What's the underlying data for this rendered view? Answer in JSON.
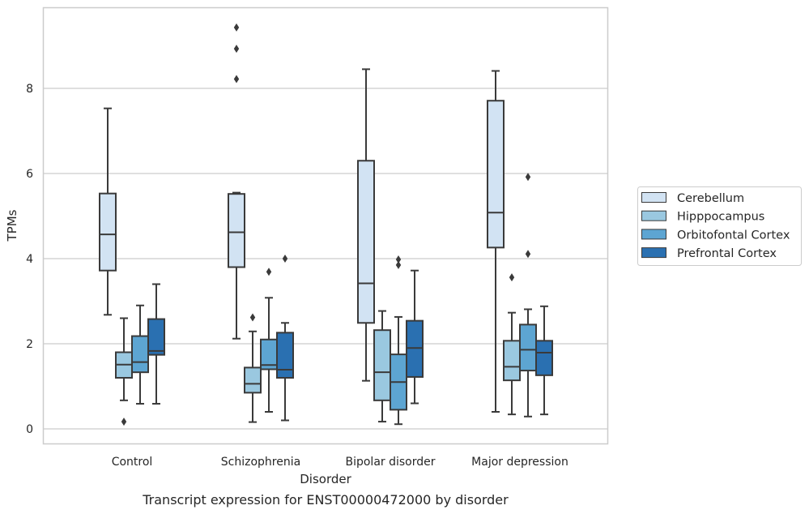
{
  "chart_data": {
    "type": "box",
    "xlabel": "Disorder",
    "ylabel": "TPMs",
    "caption": "Transcript expression for ENST00000472000 by disorder",
    "ylim": [
      -0.35,
      9.9
    ],
    "yticks": [
      0,
      2,
      4,
      6,
      8
    ],
    "grid": "horizontal",
    "legend_position": "right",
    "categories": [
      "Control",
      "Schizophrenia",
      "Bipolar disorder",
      "Major depression"
    ],
    "series": [
      {
        "name": "Cerebellum",
        "color": "#d2e3f3",
        "boxes": [
          {
            "whisker_low": 2.68,
            "q1": 3.72,
            "median": 4.57,
            "q3": 5.53,
            "whisker_high": 7.53,
            "outliers": []
          },
          {
            "whisker_low": 2.12,
            "q1": 3.8,
            "median": 4.62,
            "q3": 5.52,
            "whisker_high": 5.55,
            "outliers": [
              8.22,
              8.93,
              9.43
            ]
          },
          {
            "whisker_low": 1.13,
            "q1": 2.49,
            "median": 3.42,
            "q3": 6.3,
            "whisker_high": 8.45,
            "outliers": []
          },
          {
            "whisker_low": 0.4,
            "q1": 4.26,
            "median": 5.08,
            "q3": 7.71,
            "whisker_high": 8.41,
            "outliers": []
          }
        ]
      },
      {
        "name": "Hipppocampus",
        "color": "#9ac8e0",
        "boxes": [
          {
            "whisker_low": 0.67,
            "q1": 1.2,
            "median": 1.51,
            "q3": 1.8,
            "whisker_high": 2.6,
            "outliers": [
              0.17
            ]
          },
          {
            "whisker_low": 0.16,
            "q1": 0.85,
            "median": 1.06,
            "q3": 1.44,
            "whisker_high": 2.29,
            "outliers": [
              2.62
            ]
          },
          {
            "whisker_low": 0.17,
            "q1": 0.67,
            "median": 1.33,
            "q3": 2.32,
            "whisker_high": 2.77,
            "outliers": []
          },
          {
            "whisker_low": 0.34,
            "q1": 1.14,
            "median": 1.46,
            "q3": 2.07,
            "whisker_high": 2.73,
            "outliers": [
              3.56
            ]
          }
        ]
      },
      {
        "name": "Orbitofontal Cortex",
        "color": "#5da5d2",
        "boxes": [
          {
            "whisker_low": 0.59,
            "q1": 1.33,
            "median": 1.57,
            "q3": 2.18,
            "whisker_high": 2.9,
            "outliers": []
          },
          {
            "whisker_low": 0.4,
            "q1": 1.4,
            "median": 1.5,
            "q3": 2.1,
            "whisker_high": 3.08,
            "outliers": [
              3.69
            ]
          },
          {
            "whisker_low": 0.11,
            "q1": 0.45,
            "median": 1.1,
            "q3": 1.75,
            "whisker_high": 2.63,
            "outliers": [
              3.85,
              3.98
            ]
          },
          {
            "whisker_low": 0.29,
            "q1": 1.37,
            "median": 1.86,
            "q3": 2.45,
            "whisker_high": 2.81,
            "outliers": [
              4.11,
              5.92
            ]
          }
        ]
      },
      {
        "name": "Prefrontal Cortex",
        "color": "#2a70b1",
        "boxes": [
          {
            "whisker_low": 0.59,
            "q1": 1.74,
            "median": 1.83,
            "q3": 2.58,
            "whisker_high": 3.4,
            "outliers": []
          },
          {
            "whisker_low": 0.2,
            "q1": 1.2,
            "median": 1.39,
            "q3": 2.26,
            "whisker_high": 2.49,
            "outliers": [
              4.0
            ]
          },
          {
            "whisker_low": 0.6,
            "q1": 1.22,
            "median": 1.9,
            "q3": 2.54,
            "whisker_high": 3.72,
            "outliers": []
          },
          {
            "whisker_low": 0.34,
            "q1": 1.26,
            "median": 1.79,
            "q3": 2.07,
            "whisker_high": 2.88,
            "outliers": []
          }
        ]
      }
    ]
  }
}
